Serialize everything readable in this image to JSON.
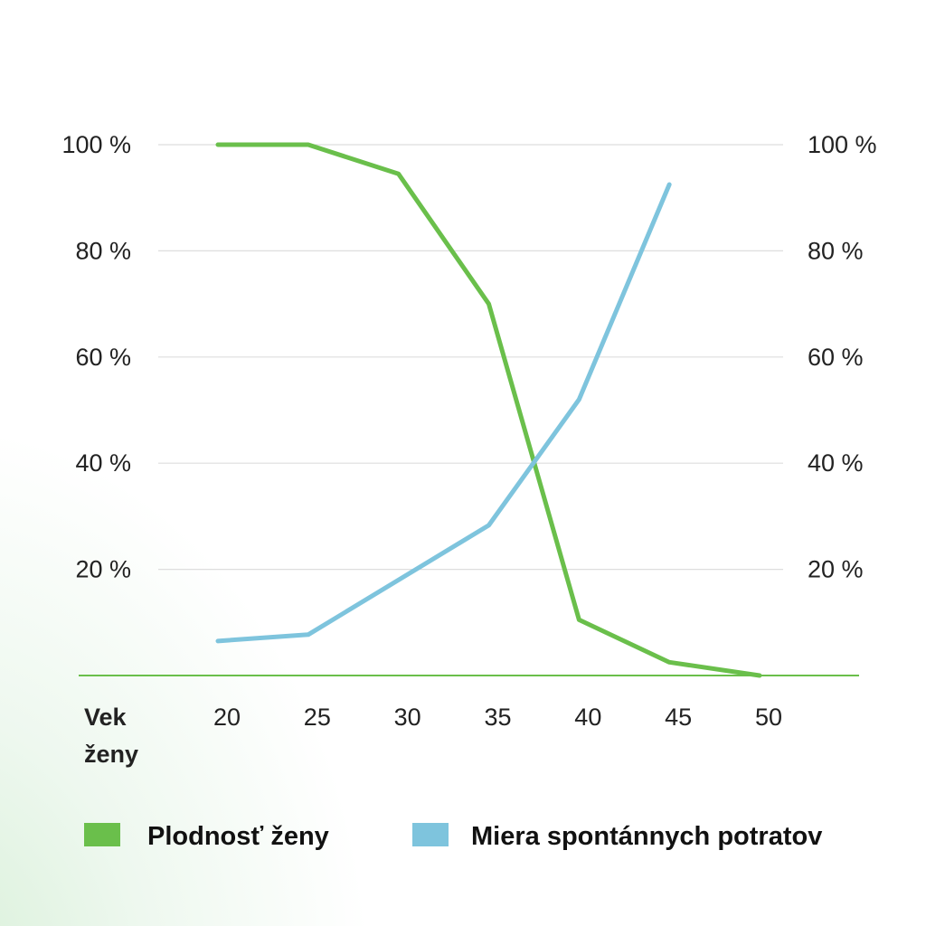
{
  "chart_data": {
    "type": "line",
    "xlabel": "Vek ženy",
    "xlabel_lines": [
      "Vek",
      "ženy"
    ],
    "x_ticks": [
      20,
      25,
      30,
      35,
      40,
      45,
      50
    ],
    "y_ticks_left": [
      "20 %",
      "40 %",
      "60 %",
      "80 %",
      "100 %"
    ],
    "y_ticks_right": [
      "20 %",
      "40 %",
      "60 %",
      "80 %",
      "100 %"
    ],
    "ylim": [
      0,
      100
    ],
    "xlim": [
      20,
      50
    ],
    "grid": true,
    "legend_placement": "bottom",
    "series": [
      {
        "name": "Plodnosť ženy",
        "color": "#6abf4b",
        "x": [
          20,
          25,
          30,
          35,
          40,
          45,
          50
        ],
        "y": [
          100,
          100,
          94.5,
          70,
          10.5,
          2.5,
          0
        ]
      },
      {
        "name": "Miera spontánnych potratov",
        "color": "#7ec4dd",
        "x": [
          20,
          25,
          35,
          40,
          45
        ],
        "y": [
          6.5,
          7.7,
          28.3,
          52,
          92.5
        ]
      }
    ]
  }
}
